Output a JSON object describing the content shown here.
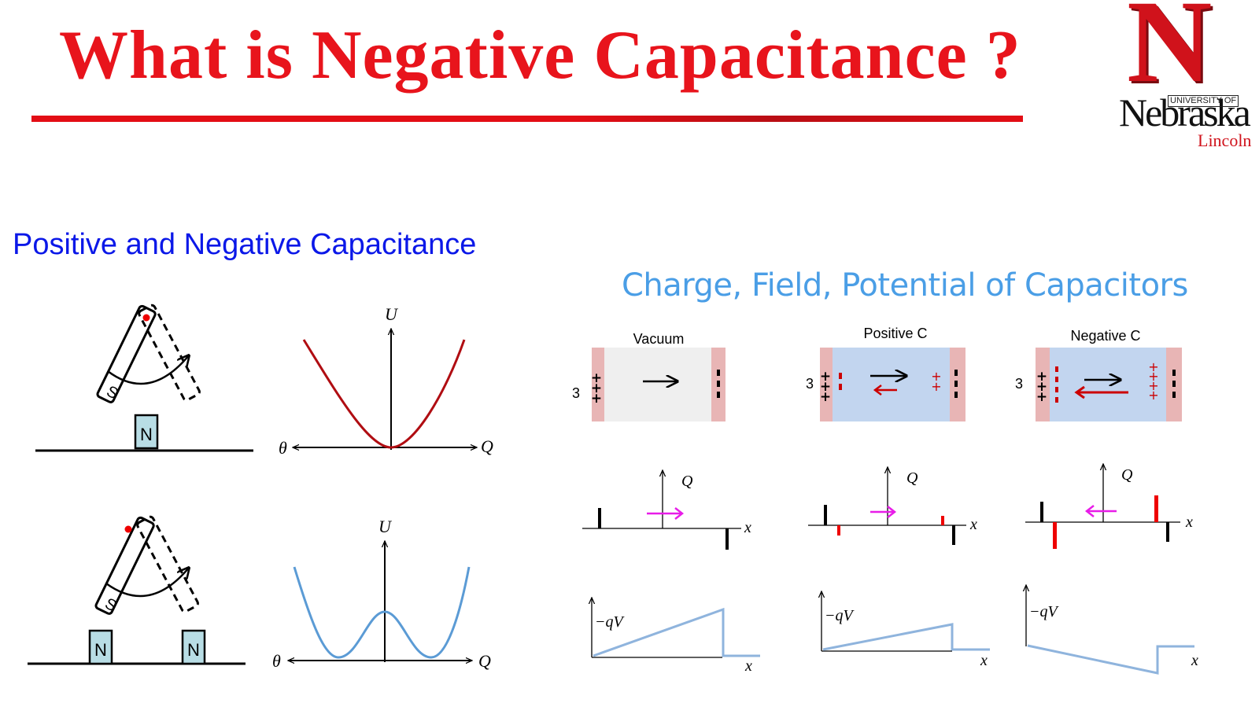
{
  "slide": {
    "title": "What is Negative Capacitance ?",
    "subtitle": "Positive and Negative Capacitance",
    "right_title": "Charge, Field, Potential of Capacitors"
  },
  "logo": {
    "letter": "N",
    "university": "UNIVERSITY OF",
    "name": "Nebraska",
    "city": "Lincoln"
  },
  "left_panel": {
    "magnet_s": "S",
    "magnet_n": "N",
    "axis_u": "U",
    "axis_q": "Q",
    "axis_theta": "θ"
  },
  "capacitors": {
    "labels": [
      "Vacuum",
      "Positive C",
      "Negative C"
    ],
    "side_number": "3",
    "axis_q": "Q",
    "axis_x": "x",
    "axis_potential": "−qV"
  },
  "colors": {
    "title": "#e8141c",
    "subtitle": "#0b18e8",
    "right_title": "#4a9ee6",
    "single_well": "#b00d12",
    "double_well": "#5b9bd5",
    "arrow_magenta": "#e81ce8",
    "plate": "#e8b5b5",
    "vacuum_fill": "#efefef",
    "dielectric_fill": "#c2d5ef"
  }
}
